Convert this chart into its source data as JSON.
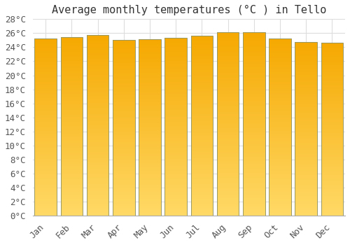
{
  "months": [
    "Jan",
    "Feb",
    "Mar",
    "Apr",
    "May",
    "Jun",
    "Jul",
    "Aug",
    "Sep",
    "Oct",
    "Nov",
    "Dec"
  ],
  "values": [
    25.2,
    25.4,
    25.7,
    25.0,
    25.1,
    25.3,
    25.6,
    26.1,
    26.1,
    25.2,
    24.7,
    24.6
  ],
  "title": "Average monthly temperatures (°C ) in Tello",
  "ylim": [
    0,
    28
  ],
  "ytick_step": 2,
  "bar_color_top": "#F5A800",
  "bar_color_bottom": "#FFD966",
  "bar_edge_color": "#999966",
  "background_color": "#FFFFFF",
  "plot_bg_color": "#FFFFFF",
  "grid_color": "#DDDDDD",
  "font_family": "monospace",
  "title_fontsize": 11,
  "tick_fontsize": 9,
  "bar_width": 0.85
}
